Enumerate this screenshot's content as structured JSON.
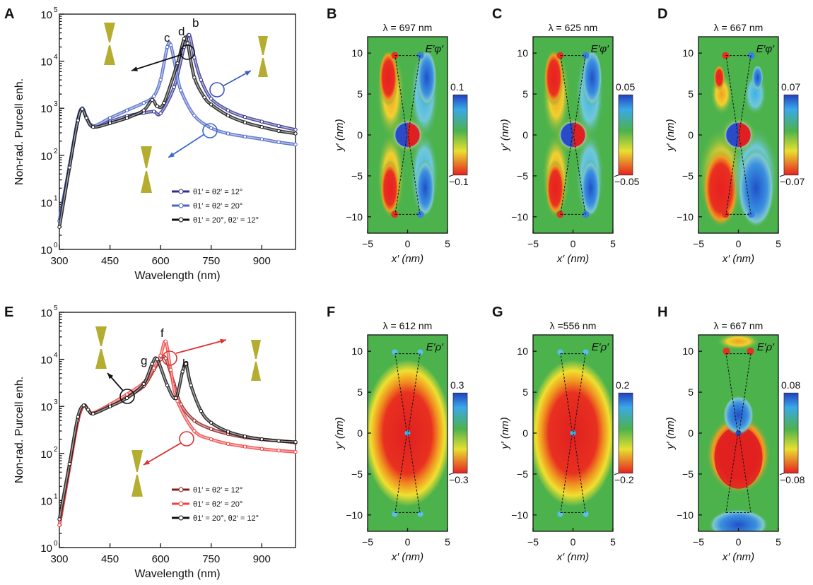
{
  "chart_data": [
    {
      "panel": "A",
      "type": "line",
      "xlabel": "Wavelength (nm)",
      "ylabel": "Non-rad. Purcell enh.",
      "xlim": [
        300,
        1000
      ],
      "ylim": [
        1,
        100000
      ],
      "yscale": "log",
      "xticks": [
        "300",
        "450",
        "600",
        "750",
        "900"
      ],
      "yticks": [
        "10",
        "10",
        "10",
        "10",
        "10",
        "10"
      ],
      "yexp": [
        "0",
        "1",
        "2",
        "3",
        "4",
        "5"
      ],
      "peak_labels": [
        "c",
        "d",
        "b"
      ],
      "series": [
        {
          "name": "θ1′ = θ2′ = 12°",
          "color": "#2f2f8f",
          "x": [
            300,
            330,
            355,
            368,
            380,
            400,
            450,
            500,
            550,
            580,
            600,
            640,
            670,
            685,
            700,
            720,
            750,
            800,
            850,
            900,
            950,
            1000
          ],
          "y": [
            4,
            60,
            600,
            1000,
            650,
            420,
            520,
            680,
            800,
            850,
            780,
            2800,
            20000,
            36000,
            12000,
            4000,
            1600,
            900,
            650,
            520,
            420,
            350
          ]
        },
        {
          "name": "θ1′ = θ2′ = 20°",
          "color": "#4a64c8",
          "x": [
            300,
            330,
            355,
            368,
            380,
            400,
            450,
            500,
            550,
            580,
            600,
            620,
            630,
            645,
            660,
            700,
            750,
            800,
            850,
            900,
            950,
            1000
          ],
          "y": [
            4,
            60,
            600,
            1000,
            650,
            420,
            620,
            900,
            1300,
            1800,
            4000,
            20000,
            22000,
            7000,
            2400,
            700,
            380,
            290,
            250,
            220,
            190,
            170
          ]
        },
        {
          "name": "θ1′ = 20°, θ2′ = 12°",
          "color": "#111111",
          "x": [
            300,
            330,
            355,
            368,
            380,
            400,
            450,
            500,
            550,
            575,
            590,
            610,
            650,
            670,
            680,
            700,
            730,
            750,
            800,
            850,
            900,
            950,
            1000
          ],
          "y": [
            3,
            55,
            550,
            950,
            620,
            400,
            480,
            620,
            900,
            1500,
            1100,
            1300,
            9000,
            30000,
            24000,
            4500,
            1700,
            1200,
            700,
            500,
            400,
            330,
            290
          ]
        }
      ]
    },
    {
      "panel": "E",
      "type": "line",
      "xlabel": "Wavelength (nm)",
      "ylabel": "Non-rad. Purcell enh.",
      "xlim": [
        300,
        1000
      ],
      "ylim": [
        1,
        100000
      ],
      "yscale": "log",
      "xticks": [
        "300",
        "450",
        "600",
        "750",
        "900"
      ],
      "yticks": [
        "10",
        "10",
        "10",
        "10",
        "10",
        "10"
      ],
      "yexp": [
        "0",
        "1",
        "2",
        "3",
        "4",
        "5"
      ],
      "peak_labels": [
        "g",
        "f",
        "h"
      ],
      "series": [
        {
          "name": "θ1′ = θ2′ = 12°",
          "color": "#8b1a1a",
          "x": [
            300,
            330,
            355,
            372,
            385,
            400,
            450,
            500,
            550,
            580,
            600,
            615,
            640,
            660,
            700,
            750,
            800,
            850,
            900,
            950,
            1000
          ],
          "y": [
            3,
            50,
            500,
            1050,
            850,
            720,
            1050,
            1600,
            2700,
            6000,
            10000,
            10500,
            3000,
            1100,
            500,
            330,
            260,
            220,
            200,
            185,
            170
          ]
        },
        {
          "name": "θ1′ = θ2′ = 20°",
          "color": "#f04040",
          "x": [
            300,
            330,
            355,
            372,
            385,
            400,
            450,
            500,
            550,
            580,
            600,
            615,
            630,
            650,
            700,
            750,
            800,
            850,
            900,
            950,
            1000
          ],
          "y": [
            3,
            50,
            500,
            1050,
            850,
            720,
            1100,
            1800,
            3200,
            6500,
            12000,
            24000,
            6000,
            1300,
            300,
            200,
            160,
            140,
            125,
            115,
            108
          ]
        },
        {
          "name": "θ1′ = 20°, θ2′ = 12°",
          "color": "#111111",
          "x": [
            300,
            330,
            355,
            372,
            385,
            400,
            450,
            500,
            550,
            575,
            590,
            620,
            645,
            665,
            675,
            690,
            720,
            750,
            800,
            850,
            900,
            950,
            1000
          ],
          "y": [
            4,
            60,
            600,
            1050,
            850,
            700,
            1000,
            1500,
            3000,
            8000,
            10000,
            2800,
            1500,
            5500,
            8000,
            2800,
            800,
            450,
            290,
            230,
            200,
            185,
            175
          ]
        }
      ]
    },
    {
      "panel": "B",
      "type": "heatmap",
      "title": "λ = 697 nm",
      "component": "E′φ′",
      "cbar": [
        "0.1",
        "−0.1"
      ],
      "pattern": "phi"
    },
    {
      "panel": "C",
      "type": "heatmap",
      "title": "λ = 625 nm",
      "component": "E′φ′",
      "cbar": [
        "0.05",
        "−0.05"
      ],
      "pattern": "phi"
    },
    {
      "panel": "D",
      "type": "heatmap",
      "title": "λ = 667 nm",
      "component": "E′φ′",
      "cbar": [
        "0.07",
        "−0.07"
      ],
      "pattern": "phi2"
    },
    {
      "panel": "F",
      "type": "heatmap",
      "title": "λ = 612 nm",
      "component": "E′ρ′",
      "cbar": [
        "0.3",
        "−0.3"
      ],
      "pattern": "rho"
    },
    {
      "panel": "G",
      "type": "heatmap",
      "title": "λ =556 nm",
      "component": "E′ρ′",
      "cbar": [
        "0.2",
        "−0.2"
      ],
      "pattern": "rho"
    },
    {
      "panel": "H",
      "type": "heatmap",
      "title": "λ = 667 nm",
      "component": "E′ρ′",
      "cbar": [
        "0.08",
        "−0.08"
      ],
      "pattern": "rho2"
    }
  ],
  "heatmap_axes": {
    "xlabel": "x′ (nm)",
    "ylabel": "y′ (nm)",
    "xticks": [
      "−5",
      "0",
      "5"
    ],
    "yticks": [
      "10",
      "5",
      "0",
      "−5",
      "−10"
    ]
  },
  "colors": {
    "tip": "#b5ad2f",
    "field_green": "#4cb24c"
  }
}
